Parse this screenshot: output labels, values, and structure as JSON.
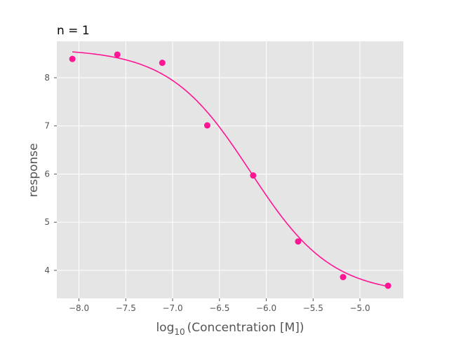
{
  "chart_data": {
    "type": "scatter",
    "title": "n = 1",
    "xlabel_prefix": "log",
    "xlabel_sub": "10",
    "xlabel_rest": "(Concentration [M])",
    "ylabel": "response",
    "xlim": [
      -8.236,
      -4.536
    ],
    "ylim": [
      3.418,
      8.756
    ],
    "xticks": [
      -8.0,
      -7.5,
      -7.0,
      -6.5,
      -6.0,
      -5.5,
      -5.0
    ],
    "xtick_labels": [
      "−8.0",
      "−7.5",
      "−7.0",
      "−6.5",
      "−6.0",
      "−5.5",
      "−5.0"
    ],
    "yticks": [
      4,
      5,
      6,
      7,
      8
    ],
    "ytick_labels": [
      "4",
      "5",
      "6",
      "7",
      "8"
    ],
    "grid": true,
    "points": {
      "x": [
        -8.07,
        -7.59,
        -7.11,
        -6.63,
        -6.14,
        -5.66,
        -5.18,
        -4.7
      ],
      "y": [
        8.39,
        8.48,
        8.31,
        7.01,
        5.97,
        4.6,
        3.86,
        3.68
      ]
    },
    "fit": {
      "model": "4PL",
      "top": 8.6,
      "bottom": 3.5,
      "logEC50": -6.17,
      "hill": 1.0,
      "x_range": [
        -8.07,
        -4.7
      ]
    },
    "colors": {
      "series": "#ff1493",
      "background": "#e5e5e5",
      "grid": "#ffffff",
      "text": "#555555"
    }
  }
}
